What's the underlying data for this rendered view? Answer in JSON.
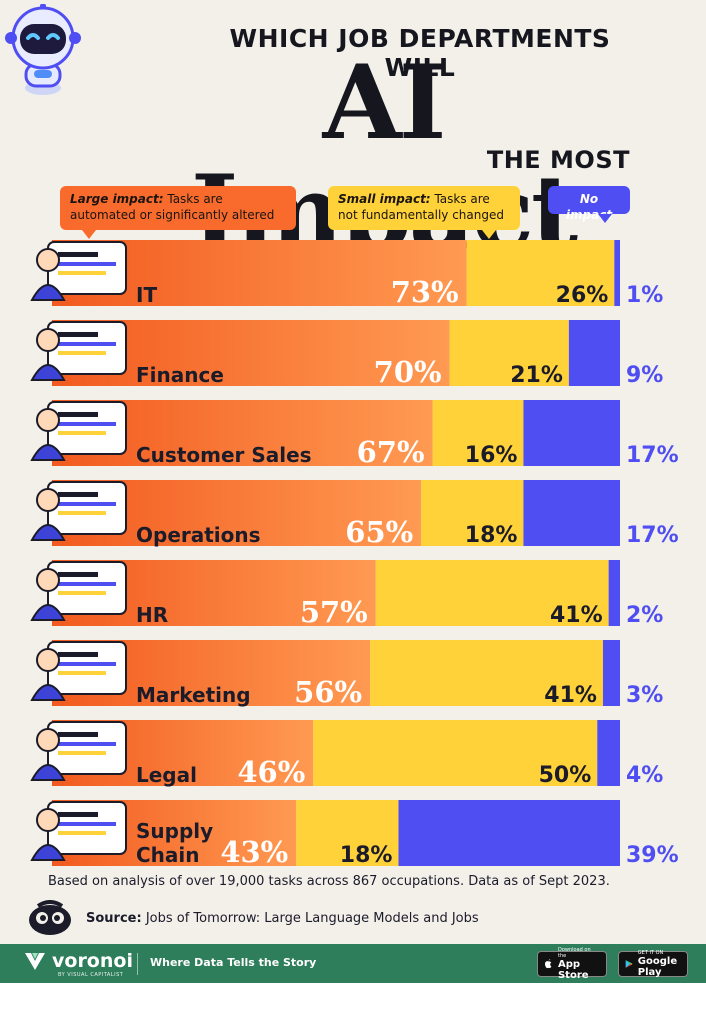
{
  "header": {
    "top_line": "WHICH JOB DEPARTMENTS WILL",
    "big_title": "AI Impact",
    "bottom_line": "THE MOST"
  },
  "legend": {
    "large": {
      "label": "Large impact:",
      "description": "Tasks are automated or significantly altered"
    },
    "small": {
      "label": "Small impact:",
      "description": "Tasks are not fundamentally changed"
    },
    "none": {
      "label": "No impact"
    }
  },
  "colors": {
    "large": "#f96b2c",
    "large_light": "#ff9a52",
    "small": "#ffd23a",
    "none": "#4f4ef2",
    "footer": "#2e7d5b"
  },
  "chart_data": {
    "type": "bar",
    "orientation": "horizontal",
    "stacked": true,
    "unit": "%",
    "categories": [
      "IT",
      "Finance",
      "Customer Sales",
      "Operations",
      "HR",
      "Marketing",
      "Legal",
      "Supply Chain"
    ],
    "series": [
      {
        "name": "Large impact",
        "values": [
          73,
          70,
          67,
          65,
          57,
          56,
          46,
          43
        ]
      },
      {
        "name": "Small impact",
        "values": [
          26,
          21,
          16,
          18,
          41,
          41,
          50,
          18
        ]
      },
      {
        "name": "No impact",
        "values": [
          1,
          9,
          17,
          17,
          2,
          3,
          4,
          39
        ]
      }
    ],
    "xlim": [
      0,
      100
    ],
    "grid": false,
    "legend_position": "top",
    "icons": [
      "it-worker-icon",
      "finance-worker-icon",
      "customer-sales-worker-icon",
      "operations-worker-icon",
      "hr-worker-icon",
      "marketing-worker-icon",
      "legal-worker-icon",
      "supply-chain-worker-icon"
    ]
  },
  "footnote": "Based on analysis of over 19,000 tasks across 867 occupations. Data as of Sept 2023.",
  "source": {
    "label": "Source:",
    "text": "Jobs of Tomorrow: Large Language Models and Jobs"
  },
  "footer": {
    "brand": "voronoi",
    "brand_sub": "BY VISUAL CAPITALIST",
    "tagline": "Where Data Tells the Story",
    "app_store_small": "Download on the",
    "app_store_big": "App Store",
    "google_play_small": "GET IT ON",
    "google_play_big": "Google Play"
  }
}
